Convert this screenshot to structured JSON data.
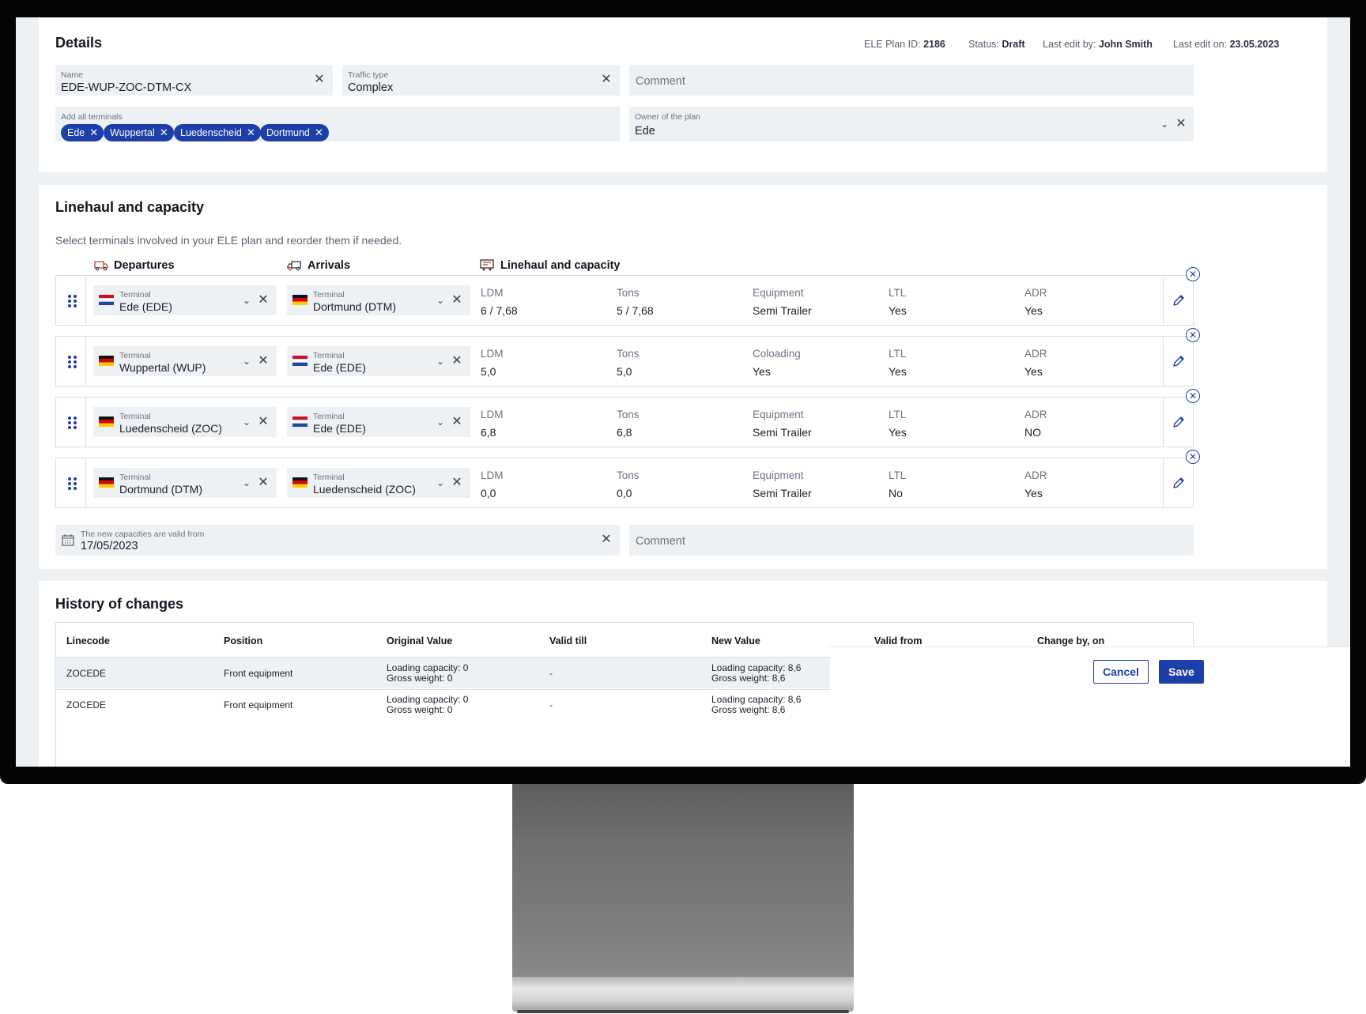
{
  "details": {
    "title": "Details",
    "meta": {
      "plan_id_label": "ELE Plan ID:",
      "plan_id": "2186",
      "status_label": "Status:",
      "status": "Draft",
      "last_edit_by_label": "Last edit by:",
      "last_edit_by": "John Smith",
      "last_edit_on_label": "Last edit on:",
      "last_edit_on": "23.05.2023"
    },
    "name": {
      "label": "Name",
      "value": "EDE-WUP-ZOC-DTM-CX"
    },
    "traffic_type": {
      "label": "Traffic type",
      "value": "Complex"
    },
    "comment": {
      "placeholder": "Comment"
    },
    "terminals": {
      "label": "Add all terminals",
      "chips": [
        "Ede",
        "Wuppertal",
        "Luedenscheid",
        "Dortmund"
      ]
    },
    "owner": {
      "label": "Owner of the plan",
      "value": "Ede"
    }
  },
  "linehaul": {
    "title": "Linehaul and capacity",
    "subtitle": "Select terminals involved in your ELE plan and reorder them if needed.",
    "columns": {
      "departures": "Departures",
      "arrivals": "Arrivals",
      "linehaul": "Linehaul and capacity"
    },
    "terminal_label": "Terminal",
    "rows": [
      {
        "from": "Ede (EDE)",
        "from_flag": "nl",
        "to": "Dortmund (DTM)",
        "to_flag": "de",
        "c1_label": "LDM",
        "c1": "6 / 7,68",
        "c2_label": "Tons",
        "c2": "5 / 7,68",
        "c3_label": "Equipment",
        "c3": "Semi Trailer",
        "c4_label": "LTL",
        "c4": "Yes",
        "c5_label": "ADR",
        "c5": "Yes"
      },
      {
        "from": "Wuppertal (WUP)",
        "from_flag": "de",
        "to": "Ede (EDE)",
        "to_flag": "nl",
        "c1_label": "LDM",
        "c1": "5,0",
        "c2_label": "Tons",
        "c2": "5,0",
        "c3_label": "Coloading",
        "c3": "Yes",
        "c4_label": "LTL",
        "c4": "Yes",
        "c5_label": "ADR",
        "c5": "Yes"
      },
      {
        "from": "Luedenscheid (ZOC)",
        "from_flag": "de",
        "to": "Ede (EDE)",
        "to_flag": "nl",
        "c1_label": "LDM",
        "c1": "6,8",
        "c2_label": "Tons",
        "c2": "6,8",
        "c3_label": "Equipment",
        "c3": "Semi Trailer",
        "c4_label": "LTL",
        "c4": "Yes",
        "c5_label": "ADR",
        "c5": "NO"
      },
      {
        "from": "Dortmund (DTM)",
        "from_flag": "de",
        "to": "Luedenscheid (ZOC)",
        "to_flag": "de",
        "c1_label": "LDM",
        "c1": "0,0",
        "c2_label": "Tons",
        "c2": "0,0",
        "c3_label": "Equipment",
        "c3": "Semi Trailer",
        "c4_label": "LTL",
        "c4": "No",
        "c5_label": "ADR",
        "c5": "Yes"
      }
    ],
    "valid_from": {
      "label": "The new capacities are valid from",
      "value": "17/05/2023"
    },
    "comment": {
      "placeholder": "Comment"
    }
  },
  "history": {
    "title": "History of changes",
    "headers": [
      "Linecode",
      "Position",
      "Original Value",
      "Valid till",
      "New Value",
      "Valid from",
      "Change by, on"
    ],
    "rows": [
      {
        "linecode": "ZOCEDE",
        "position": "Front equipment",
        "orig1": "Loading capacity: 0",
        "orig2": "Gross weight: 0",
        "valid_till": "-",
        "new1": "Loading capacity: 8,6",
        "new2": "Gross weight: 8,6"
      },
      {
        "linecode": "ZOCEDE",
        "position": "Front equipment",
        "orig1": "Loading capacity: 0",
        "orig2": "Gross weight: 0",
        "valid_till": "-",
        "new1": "Loading capacity: 8,6",
        "new2": "Gross weight: 8,6"
      }
    ]
  },
  "actions": {
    "cancel": "Cancel",
    "save": "Save"
  },
  "colors": {
    "accent": "#1c3fa9",
    "field_bg": "#eef1f4",
    "page_bg": "#eef1f4"
  },
  "icons": [
    "close-icon",
    "chevron-down-icon",
    "drag-handle-icon",
    "edit-pencil-icon",
    "calendar-icon",
    "truck-departure-icon",
    "truck-arrival-icon",
    "linehaul-icon",
    "flag-nl-icon",
    "flag-de-icon"
  ]
}
